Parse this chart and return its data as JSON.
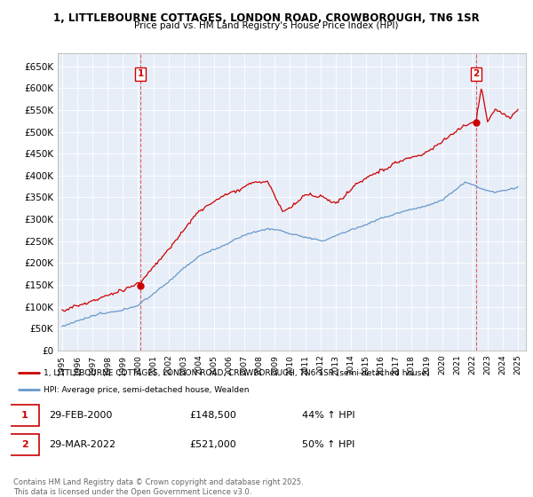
{
  "title": "1, LITTLEBOURNE COTTAGES, LONDON ROAD, CROWBOROUGH, TN6 1SR",
  "subtitle": "Price paid vs. HM Land Registry's House Price Index (HPI)",
  "red_label": "1, LITTLEBOURNE COTTAGES, LONDON ROAD, CROWBOROUGH, TN6 1SR (semi-detached house)",
  "blue_label": "HPI: Average price, semi-detached house, Wealden",
  "transaction1_label": "29-FEB-2000",
  "transaction1_price": "£148,500",
  "transaction1_hpi": "44% ↑ HPI",
  "transaction2_label": "29-MAR-2022",
  "transaction2_price": "£521,000",
  "transaction2_hpi": "50% ↑ HPI",
  "footer": "Contains HM Land Registry data © Crown copyright and database right 2025.\nThis data is licensed under the Open Government Licence v3.0.",
  "red_color": "#cc0000",
  "blue_color": "#6699cc",
  "dashed_color": "#cc0000",
  "bg_color": "#ffffff",
  "chart_bg_color": "#e8eef8",
  "grid_color": "#ffffff",
  "ylim": [
    0,
    680000
  ],
  "yticks": [
    0,
    50000,
    100000,
    150000,
    200000,
    250000,
    300000,
    350000,
    400000,
    450000,
    500000,
    550000,
    600000,
    650000
  ],
  "year_start": 1995,
  "year_end": 2025,
  "transaction1_year": 2000.16,
  "transaction2_year": 2022.24
}
